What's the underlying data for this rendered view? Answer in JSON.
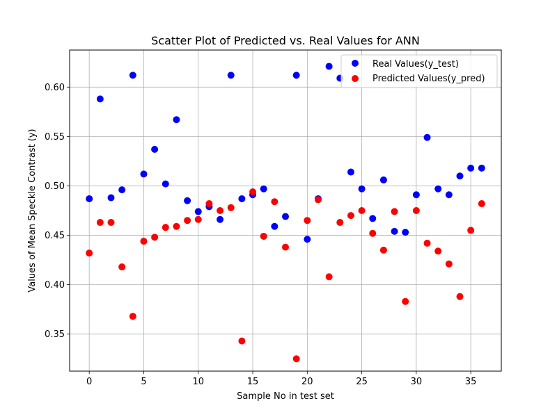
{
  "colors": {
    "real": "#0000ff",
    "predicted": "#ff0000",
    "grid": "#b0b0b0",
    "axis": "#000000",
    "background": "#ffffff"
  },
  "chart_data": {
    "type": "scatter",
    "title": "Scatter Plot of Predicted vs. Real Values for ANN",
    "xlabel": "Sample No in test set",
    "ylabel": "Values of Mean Speckle Contrast (y)",
    "xlim": [
      -1.8,
      37.8
    ],
    "ylim": [
      0.3125,
      0.6375
    ],
    "x_ticks": [
      0,
      5,
      10,
      15,
      20,
      25,
      30,
      35
    ],
    "x_tick_labels": [
      "0",
      "5",
      "10",
      "15",
      "20",
      "25",
      "30",
      "35"
    ],
    "y_ticks": [
      0.35,
      0.4,
      0.45,
      0.5,
      0.55,
      0.6
    ],
    "y_tick_labels": [
      "0.35",
      "0.40",
      "0.45",
      "0.50",
      "0.55",
      "0.60"
    ],
    "grid": true,
    "legend_position": "upper right",
    "x": [
      0,
      1,
      2,
      3,
      4,
      5,
      6,
      7,
      8,
      9,
      10,
      11,
      12,
      13,
      14,
      15,
      16,
      17,
      18,
      19,
      20,
      21,
      22,
      23,
      24,
      25,
      26,
      27,
      28,
      29,
      30,
      31,
      32,
      33,
      34,
      35,
      36
    ],
    "series": [
      {
        "name": "Real Values(y_test)",
        "color": "#0000ff",
        "values": [
          0.487,
          0.588,
          0.488,
          0.496,
          0.612,
          0.512,
          0.537,
          0.502,
          0.567,
          0.485,
          0.474,
          0.479,
          0.466,
          0.612,
          0.487,
          0.491,
          0.497,
          0.459,
          0.469,
          0.612,
          0.446,
          0.487,
          0.621,
          0.609,
          0.514,
          0.497,
          0.467,
          0.506,
          0.454,
          0.453,
          0.491,
          0.549,
          0.497,
          0.491,
          0.51,
          0.518,
          0.518
        ]
      },
      {
        "name": "Predicted Values(y_pred)",
        "color": "#ff0000",
        "values": [
          0.432,
          0.463,
          0.463,
          0.418,
          0.368,
          0.444,
          0.448,
          0.458,
          0.459,
          0.465,
          0.466,
          0.482,
          0.475,
          0.478,
          0.343,
          0.494,
          0.449,
          0.484,
          0.438,
          0.325,
          0.465,
          0.486,
          0.408,
          0.463,
          0.47,
          0.475,
          0.452,
          0.435,
          0.474,
          0.383,
          0.475,
          0.442,
          0.434,
          0.421,
          0.388,
          0.455,
          0.482
        ]
      }
    ]
  }
}
